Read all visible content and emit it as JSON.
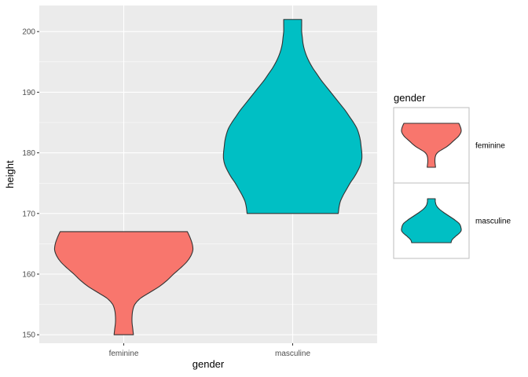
{
  "chart_data": {
    "type": "violin",
    "x_categories": [
      "feminine",
      "masculine"
    ],
    "xlabel": "gender",
    "ylabel": "height",
    "ylim": [
      148.6,
      204.3
    ],
    "yticks": [
      150,
      160,
      170,
      180,
      190,
      200
    ],
    "grid": true,
    "legend": {
      "title": "gender",
      "position": "right",
      "entries": [
        {
          "label": "feminine",
          "color": "#F8766D"
        },
        {
          "label": "masculine",
          "color": "#00BFC4"
        }
      ]
    },
    "series": [
      {
        "category": "feminine",
        "color": "#F8766D",
        "min": 150,
        "max": 167,
        "density_profile": [
          [
            150,
            0.14
          ],
          [
            151,
            0.13
          ],
          [
            152,
            0.12
          ],
          [
            153,
            0.12
          ],
          [
            154,
            0.13
          ],
          [
            155,
            0.16
          ],
          [
            156,
            0.24
          ],
          [
            157,
            0.38
          ],
          [
            158,
            0.52
          ],
          [
            159,
            0.63
          ],
          [
            160,
            0.72
          ],
          [
            161,
            0.82
          ],
          [
            162,
            0.91
          ],
          [
            163,
            0.97
          ],
          [
            164,
            1.0
          ],
          [
            165,
            0.99
          ],
          [
            166,
            0.96
          ],
          [
            167,
            0.92
          ]
        ]
      },
      {
        "category": "masculine",
        "color": "#00BFC4",
        "min": 170,
        "max": 202,
        "density_profile": [
          [
            170,
            0.66
          ],
          [
            171,
            0.67
          ],
          [
            172,
            0.69
          ],
          [
            173,
            0.73
          ],
          [
            174,
            0.78
          ],
          [
            175,
            0.83
          ],
          [
            176,
            0.89
          ],
          [
            177,
            0.94
          ],
          [
            178,
            0.98
          ],
          [
            179,
            1.0
          ],
          [
            180,
            1.0
          ],
          [
            181,
            0.99
          ],
          [
            182,
            0.98
          ],
          [
            183,
            0.96
          ],
          [
            184,
            0.93
          ],
          [
            185,
            0.88
          ],
          [
            186,
            0.82
          ],
          [
            187,
            0.76
          ],
          [
            188,
            0.69
          ],
          [
            189,
            0.62
          ],
          [
            190,
            0.55
          ],
          [
            191,
            0.48
          ],
          [
            192,
            0.41
          ],
          [
            193,
            0.35
          ],
          [
            194,
            0.29
          ],
          [
            195,
            0.24
          ],
          [
            196,
            0.2
          ],
          [
            197,
            0.17
          ],
          [
            198,
            0.15
          ],
          [
            199,
            0.14
          ],
          [
            200,
            0.13
          ],
          [
            201,
            0.13
          ],
          [
            202,
            0.13
          ]
        ]
      }
    ],
    "colors": {
      "panel_background": "#EBEBEB",
      "grid_major": "#FFFFFF",
      "outline": "#333333"
    }
  }
}
